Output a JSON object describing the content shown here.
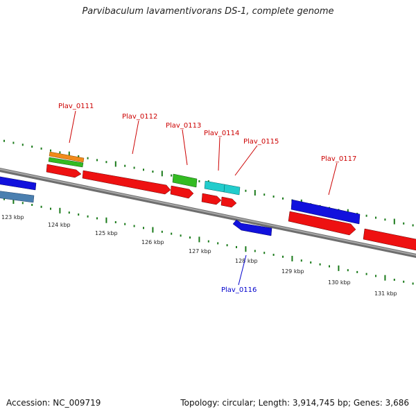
{
  "title": "Parvibaculum lavamentivorans DS-1, complete genome",
  "footer": {
    "accession": "Accession: NC_009719",
    "summary": "Topology: circular; Length: 3,914,745 bp; Genes: 3,686"
  },
  "scale_labels": [
    "123 kbp",
    "124 kbp",
    "125 kbp",
    "126 kbp",
    "127 kbp",
    "128 kbp",
    "129 kbp",
    "130 kbp",
    "131 kbp"
  ],
  "gene_labels": [
    {
      "text": "Plav_0111",
      "color": "#cc0000"
    },
    {
      "text": "Plav_0112",
      "color": "#cc0000"
    },
    {
      "text": "Plav_0113",
      "color": "#cc0000"
    },
    {
      "text": "Plav_0114",
      "color": "#cc0000"
    },
    {
      "text": "Plav_0115",
      "color": "#cc0000"
    },
    {
      "text": "Plav_0117",
      "color": "#cc0000"
    },
    {
      "text": "Plav_0116",
      "color": "#0000cc"
    }
  ],
  "colors": {
    "red": "#ee1111",
    "blue": "#1111dd",
    "green": "#33bb22",
    "orange": "#f08a1a",
    "cyan": "#22cccc",
    "steelblue": "#4a7fb0",
    "backbone": "#8a8a8a",
    "tick": "#1a7a1a"
  }
}
